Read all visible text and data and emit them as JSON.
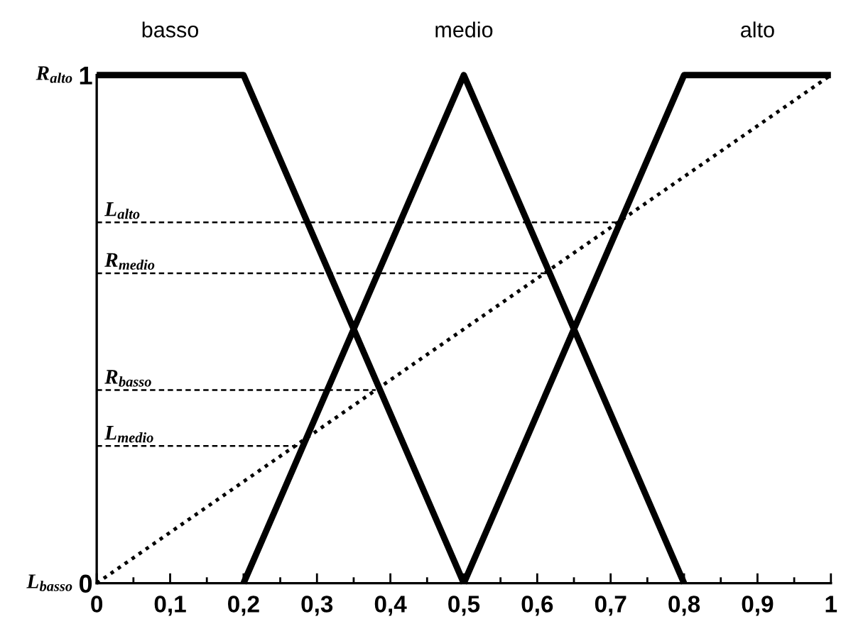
{
  "chart_data": {
    "type": "line",
    "xlim": [
      0,
      1
    ],
    "ylim": [
      0,
      1
    ],
    "xticks": [
      0,
      {
        "value": 0.1,
        "label": "0,1"
      },
      {
        "value": 0.2,
        "label": "0,2"
      },
      {
        "value": 0.3,
        "label": "0,3"
      },
      {
        "value": 0.4,
        "label": "0,4"
      },
      {
        "value": 0.5,
        "label": "0,5"
      },
      {
        "value": 0.6,
        "label": "0,6"
      },
      {
        "value": 0.7,
        "label": "0,7"
      },
      {
        "value": 0.8,
        "label": "0,8"
      },
      {
        "value": 0.9,
        "label": "0,9"
      },
      1
    ],
    "yticks": [
      0,
      1
    ],
    "series": [
      {
        "name": "basso",
        "color": "#000000",
        "x": [
          0,
          0.2,
          0.5
        ],
        "values": [
          1,
          1,
          0
        ],
        "line_style": "solid"
      },
      {
        "name": "medio",
        "color": "#000000",
        "x": [
          0.2,
          0.5,
          0.8
        ],
        "values": [
          0,
          1,
          0
        ],
        "line_style": "solid"
      },
      {
        "name": "alto",
        "color": "#000000",
        "x": [
          0.5,
          0.8,
          1
        ],
        "values": [
          0,
          1,
          1
        ],
        "line_style": "solid"
      },
      {
        "color": "#000000",
        "x": [
          0,
          1
        ],
        "values": [
          0,
          1
        ],
        "line_style": "dotted"
      },
      {
        "name": "L$_{alto}$",
        "color": "#000000",
        "x": [
          0,
          0.71
        ],
        "values": [
          0.71,
          0.71
        ],
        "line_style": "dashed"
      },
      {
        "name": "R$_{medio}$",
        "color": "#000000",
        "x": [
          0,
          0.62
        ],
        "values": [
          0.61,
          0.61
        ],
        "line_style": "dashed"
      },
      {
        "name": "R$_{basso}$",
        "color": "#000000",
        "x": [
          0,
          0.38
        ],
        "values": [
          0.38,
          0.38
        ],
        "line_style": "dashed"
      },
      {
        "name": "L$_{medio}$",
        "color": "#000000",
        "x": [
          0,
          0.28
        ],
        "values": [
          0.27,
          0.27
        ],
        "line_style": "dashed"
      }
    ],
    "annotations": [
      {
        "text": "R$_{alto}$",
        "x": 0,
        "y": 1
      },
      {
        "text": "L$_{basso}$",
        "x": 0,
        "y": 0
      }
    ]
  }
}
